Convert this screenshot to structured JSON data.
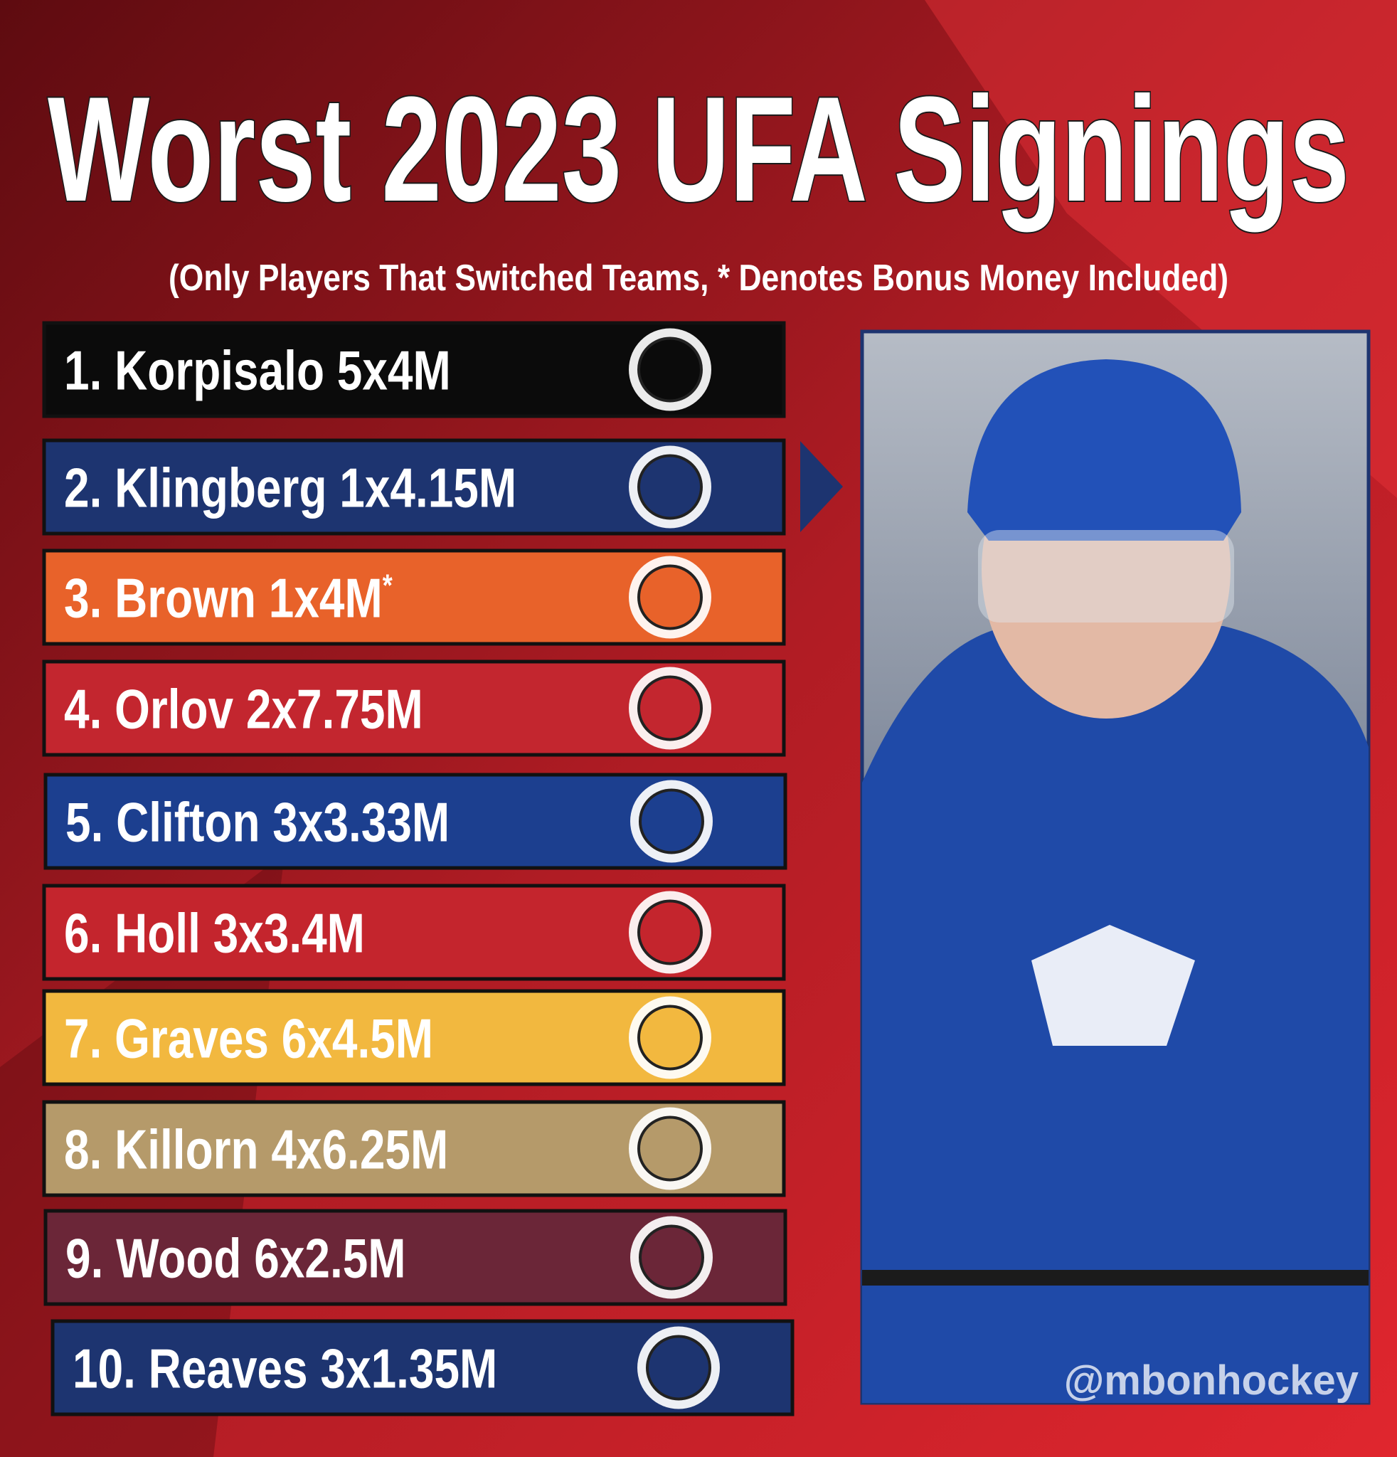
{
  "header": {
    "title": "Worst 2023 UFA Signings",
    "subtitle": "(Only Players That Switched Teams, * Denotes Bonus Money Included)"
  },
  "list": [
    {
      "text": "1. Korpisalo 5x4M",
      "color": "#0b0b0b"
    },
    {
      "text": "2. Klingberg 1x4.15M",
      "color": "#1d3470"
    },
    {
      "text": "3. Brown 1x4M",
      "note": "*",
      "color": "#e8622a"
    },
    {
      "text": "4. Orlov 2x7.75M",
      "color": "#c3262f"
    },
    {
      "text": "5. Clifton 3x3.33M",
      "color": "#1c3f8f"
    },
    {
      "text": "6. Holl 3x3.4M",
      "color": "#c4252d"
    },
    {
      "text": "7. Graves 6x4.5M",
      "color": "#f2b83f"
    },
    {
      "text": "8. Killorn 4x6.25M",
      "color": "#b59a6a"
    },
    {
      "text": "9. Wood 6x2.5M",
      "color": "#6b2638"
    },
    {
      "text": "10. Reaves 3x1.35M",
      "color": "#1d3470"
    }
  ],
  "watermark": "@mbonhockey"
}
